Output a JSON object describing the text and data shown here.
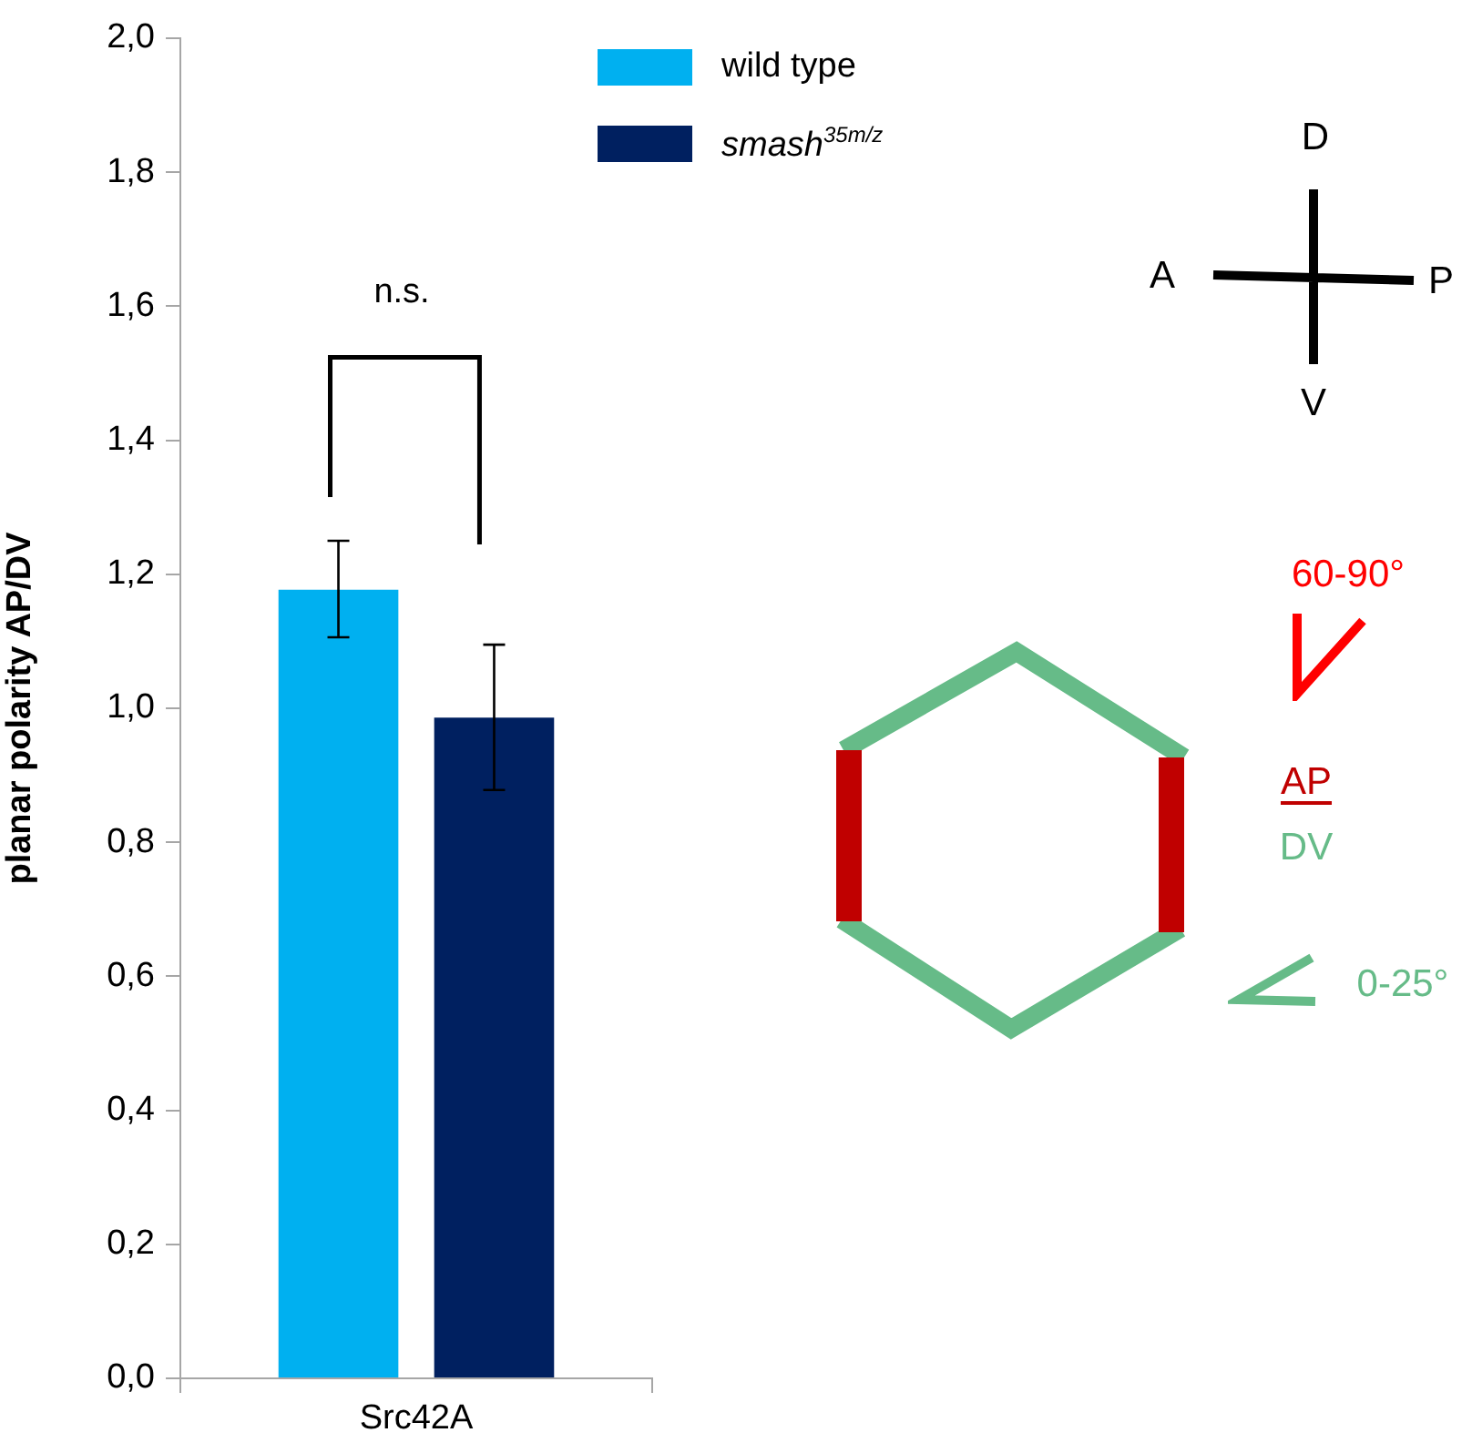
{
  "chart_data": {
    "type": "bar",
    "ylabel": "planar polarity AP/DV",
    "categories": [
      "Src42A"
    ],
    "series": [
      {
        "name": "wild type",
        "color": "#00b0f0",
        "values": [
          1.177
        ],
        "errors": [
          [
            1.106,
            1.25
          ]
        ]
      },
      {
        "name": "smash$^{35m/z}$",
        "color": "#002060",
        "values": [
          0.986
        ],
        "errors": [
          [
            0.878,
            1.095
          ]
        ]
      }
    ],
    "ylim": [
      0,
      2
    ],
    "yticks": [
      {
        "value": 0,
        "label": "0,0"
      },
      {
        "value": 0.2,
        "label": "0,2"
      },
      {
        "value": 0.4,
        "label": "0,4"
      },
      {
        "value": 0.6,
        "label": "0,6"
      },
      {
        "value": 0.8,
        "label": "0,8"
      },
      {
        "value": 1,
        "label": "1,0"
      },
      {
        "value": 1.2,
        "label": "1,2"
      },
      {
        "value": 1.4,
        "label": "1,4"
      },
      {
        "value": 1.6,
        "label": "1,6"
      },
      {
        "value": 1.8,
        "label": "1,8"
      },
      {
        "value": 2,
        "label": "2,0"
      }
    ],
    "grid": false,
    "legend": "top right",
    "annotations": [
      "n.s.",
      "A",
      "P",
      "D",
      "V",
      "60-90°",
      "AP",
      "DV",
      "0-25°"
    ]
  }
}
